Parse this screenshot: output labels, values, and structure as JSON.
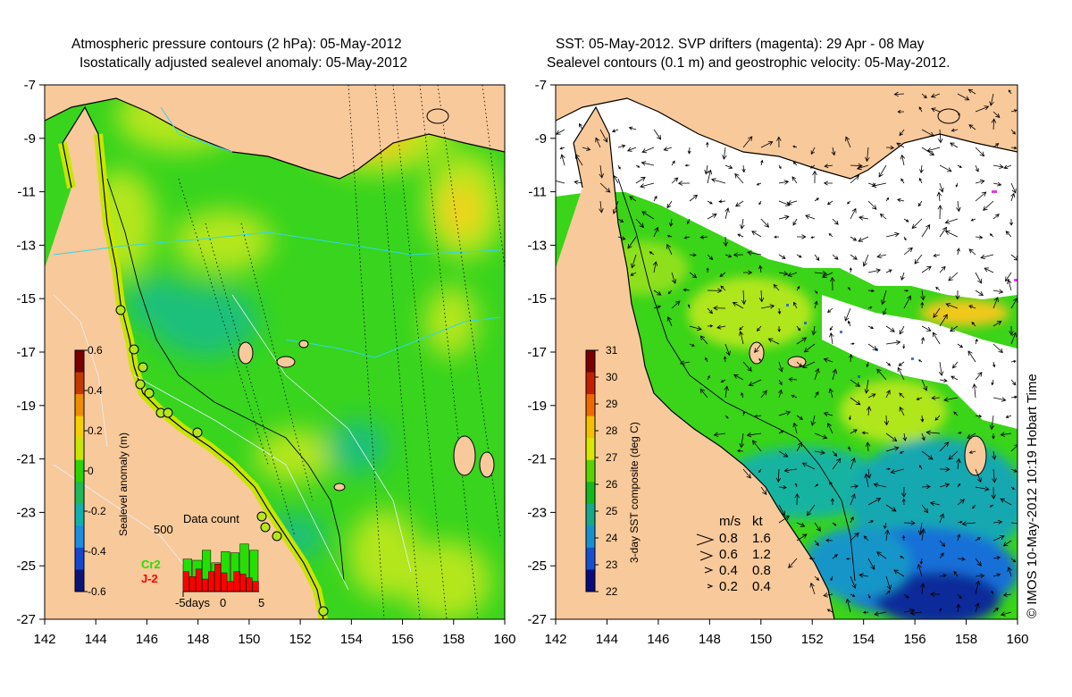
{
  "left_panel": {
    "title_line1": "Atmospheric pressure contours (2 hPa): 05-May-2012",
    "title_line2": "Isostatically adjusted sealevel anomaly: 05-May-2012",
    "y_ticks": [
      "-7",
      "-9",
      "-11",
      "-13",
      "-15",
      "-17",
      "-19",
      "-21",
      "-23",
      "-25",
      "-27"
    ],
    "x_ticks": [
      "142",
      "144",
      "146",
      "148",
      "150",
      "152",
      "154",
      "156",
      "158",
      "160"
    ],
    "colorbar": {
      "label": "Sealevel anomaly (m)",
      "ticks": [
        "0.6",
        "0.4",
        "0.2",
        "0",
        "-0.2",
        "-0.4",
        "-0.6"
      ],
      "colors": [
        "#7a0000",
        "#c23a00",
        "#f08c00",
        "#f5d000",
        "#c8e600",
        "#2ad400",
        "#1eb85a",
        "#10b0b0",
        "#1c8ce0",
        "#1446d0",
        "#0a1478"
      ]
    },
    "data_count": {
      "title": "Data count",
      "y_max_label": "500",
      "x_labels": [
        "-5days",
        "0",
        "5"
      ],
      "legend": [
        {
          "name": "Cr2",
          "color": "#22e000"
        },
        {
          "name": "J-2",
          "color": "#ff0000"
        }
      ],
      "cr2_bars": [
        260,
        250,
        330,
        230,
        320,
        310,
        380,
        330
      ],
      "j2_bars": [
        160,
        120,
        180,
        100,
        160,
        220,
        150,
        80,
        160,
        140,
        110,
        80
      ]
    }
  },
  "right_panel": {
    "title_line1": "SST: 05-May-2012. SVP drifters (magenta): 29 Apr - 08 May",
    "title_line2": "Sealevel contours (0.1 m) and geostrophic velocity: 05-May-2012.",
    "y_ticks": [
      "-7",
      "-9",
      "-11",
      "-13",
      "-15",
      "-17",
      "-19",
      "-21",
      "-23",
      "-25",
      "-27"
    ],
    "x_ticks": [
      "142",
      "144",
      "146",
      "148",
      "150",
      "152",
      "154",
      "156",
      "158",
      "160"
    ],
    "colorbar": {
      "label": "3-day SST composite (deg C)",
      "ticks": [
        "31",
        "30",
        "29",
        "28",
        "27",
        "26",
        "25",
        "24",
        "23",
        "22"
      ],
      "colors": [
        "#7a0000",
        "#c02000",
        "#ee6a00",
        "#f5c000",
        "#d8e800",
        "#5ad400",
        "#14b820",
        "#16a88a",
        "#1890d0",
        "#1450d0",
        "#0a0a80"
      ]
    },
    "speed_legend": {
      "header_ms": "m/s",
      "header_kt": "kt",
      "rows": [
        {
          "ms": "0.8",
          "kt": "1.6"
        },
        {
          "ms": "0.6",
          "kt": "1.2"
        },
        {
          "ms": "0.4",
          "kt": "0.8"
        },
        {
          "ms": "0.2",
          "kt": "0.4"
        }
      ]
    },
    "credit": "© IMOS 10-May-2012 10:19 Hobart Time"
  },
  "colors": {
    "land": "#f8c99a",
    "sea_green": "#38d41e",
    "sea_yellowgreen": "#b4e61a",
    "sea_yellow": "#f2d21a",
    "sea_teal": "#1eb87a",
    "contour_cyan": "#30d8e8"
  }
}
